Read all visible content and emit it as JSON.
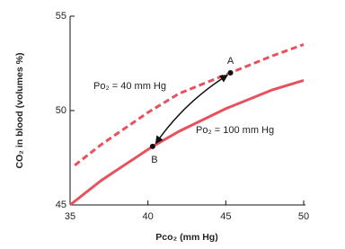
{
  "chart_data": {
    "type": "line",
    "ylabel": "CO₂ in blood (volumes %)",
    "xlabel": "Pco₂ (mm Hg)",
    "xlim": [
      35,
      50
    ],
    "xticks": [
      35,
      40,
      45,
      50
    ],
    "ylim": [
      45,
      55
    ],
    "yticks": [
      45,
      50,
      55
    ],
    "series": [
      {
        "name": "Po₂ = 40 mm Hg",
        "color": "#e8505b",
        "style": "dashed",
        "x": [
          35.3,
          37,
          40,
          42,
          45.3,
          48,
          50
        ],
        "values": [
          47.1,
          48.2,
          49.9,
          50.9,
          52.0,
          52.9,
          53.5
        ]
      },
      {
        "name": "Po₂ = 100 mm Hg",
        "color": "#e8505b",
        "style": "solid",
        "x": [
          35,
          37,
          40.3,
          42,
          45,
          48,
          50
        ],
        "values": [
          45,
          46.3,
          48.1,
          48.9,
          50.1,
          51.1,
          51.6
        ]
      }
    ],
    "points": [
      {
        "label": "A",
        "x": 45.3,
        "y": 52.0
      },
      {
        "label": "B",
        "x": 40.3,
        "y": 48.1
      }
    ]
  }
}
